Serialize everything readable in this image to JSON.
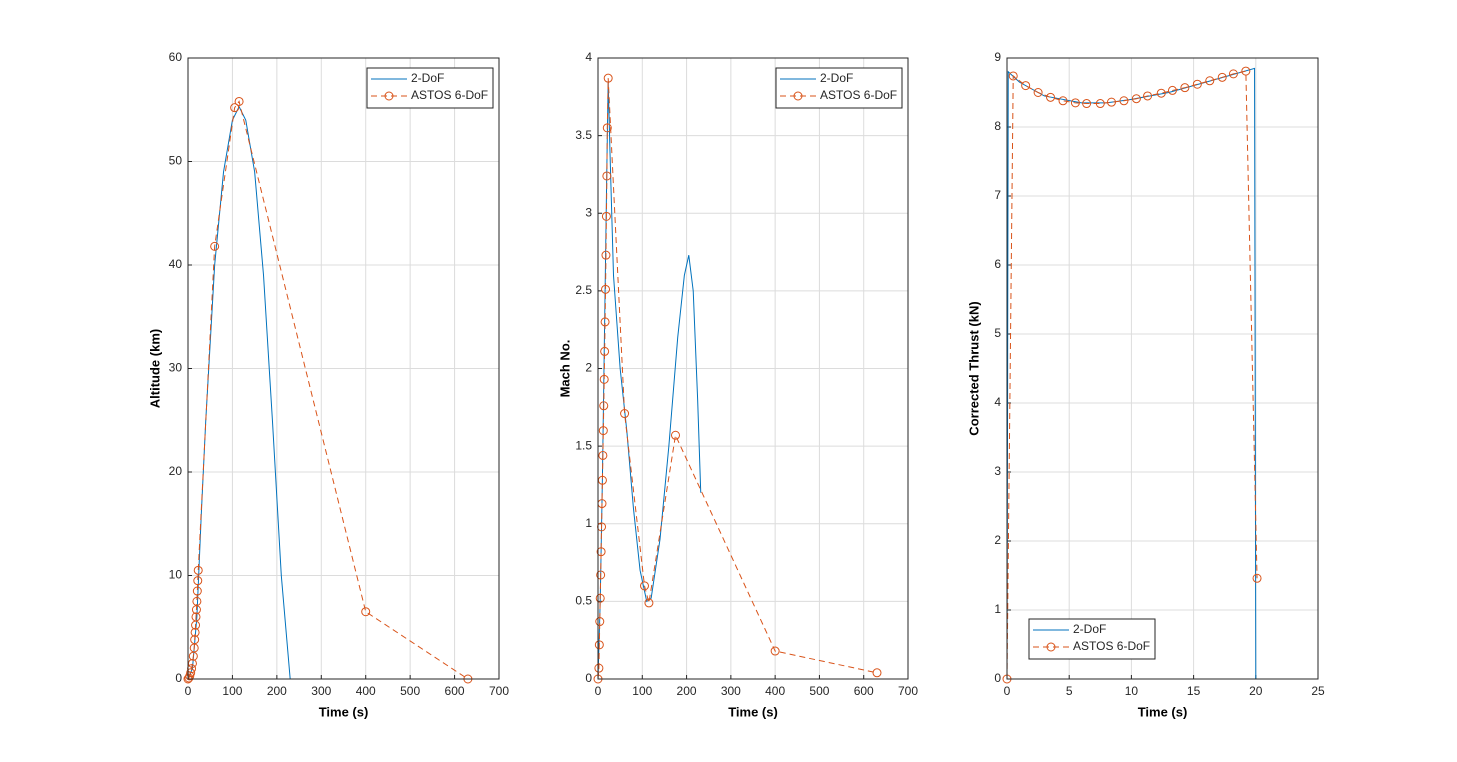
{
  "chart_data": [
    {
      "type": "line",
      "xlabel": "Time (s)",
      "ylabel": "Altitude (km)",
      "xlim": [
        0,
        700
      ],
      "xticks": [
        0,
        100,
        200,
        300,
        400,
        500,
        600,
        700
      ],
      "ylim": [
        0,
        60
      ],
      "yticks": [
        0,
        10,
        20,
        30,
        40,
        50,
        60
      ],
      "grid": true,
      "legend": "northeast",
      "series": [
        {
          "name": "2-DoF",
          "color": "#0072BD",
          "line_style": "solid",
          "x": [
            0,
            10,
            20,
            30,
            40,
            60,
            80,
            100,
            115,
            130,
            150,
            170,
            190,
            210,
            230
          ],
          "values": [
            0,
            1,
            6,
            16,
            25,
            40,
            49,
            54,
            55.3,
            54,
            49,
            39,
            25,
            10,
            0
          ]
        },
        {
          "name": "ASTOS 6-DoF",
          "color": "#D95319",
          "line_style": "dashed",
          "marker": "circle",
          "x": [
            0,
            2,
            4,
            6,
            8,
            10,
            12,
            14,
            15,
            16,
            17,
            18,
            19,
            20,
            21,
            22,
            23,
            60,
            105,
            115,
            400,
            630
          ],
          "values": [
            0,
            0.1,
            0.3,
            0.6,
            1,
            1.5,
            2.2,
            3,
            3.8,
            4.5,
            5.2,
            6,
            6.7,
            7.5,
            8.5,
            9.5,
            10.5,
            41.8,
            55.2,
            55.8,
            6.5,
            0
          ]
        }
      ]
    },
    {
      "type": "line",
      "xlabel": "Time (s)",
      "ylabel": "Mach No.",
      "xlim": [
        0,
        700
      ],
      "xticks": [
        0,
        100,
        200,
        300,
        400,
        500,
        600,
        700
      ],
      "ylim": [
        0,
        4
      ],
      "yticks": [
        0,
        0.5,
        1,
        1.5,
        2,
        2.5,
        3,
        3.5,
        4
      ],
      "grid": true,
      "legend": "northeast",
      "series": [
        {
          "name": "2-DoF",
          "color": "#0072BD",
          "line_style": "solid",
          "x": [
            0,
            5,
            10,
            15,
            20,
            23,
            27,
            35,
            50,
            65,
            80,
            95,
            110,
            120,
            140,
            160,
            180,
            195,
            205,
            215,
            225,
            232
          ],
          "values": [
            0,
            0.5,
            1.3,
            2.3,
            3.3,
            3.85,
            3.4,
            2.6,
            2.0,
            1.6,
            1.1,
            0.7,
            0.5,
            0.52,
            0.9,
            1.5,
            2.2,
            2.6,
            2.73,
            2.5,
            1.8,
            1.2
          ]
        },
        {
          "name": "ASTOS 6-DoF",
          "color": "#D95319",
          "line_style": "dashed",
          "marker": "circle",
          "x": [
            0,
            2,
            3,
            4,
            5,
            6,
            7,
            8,
            9,
            10,
            11,
            12,
            13,
            14,
            15,
            16,
            17,
            18,
            19,
            20,
            21,
            23,
            60,
            105,
            115,
            175,
            400,
            630
          ],
          "values": [
            0,
            0.07,
            0.22,
            0.37,
            0.52,
            0.67,
            0.82,
            0.98,
            1.13,
            1.28,
            1.44,
            1.6,
            1.76,
            1.93,
            2.11,
            2.3,
            2.51,
            2.73,
            2.98,
            3.24,
            3.55,
            3.87,
            1.71,
            0.6,
            0.49,
            1.57,
            0.18,
            0.04
          ]
        }
      ]
    },
    {
      "type": "line",
      "xlabel": "Time (s)",
      "ylabel": "Corrected Thrust (kN)",
      "xlim": [
        0,
        25
      ],
      "xticks": [
        0,
        5,
        10,
        15,
        20,
        25
      ],
      "ylim": [
        0,
        9
      ],
      "yticks": [
        0,
        1,
        2,
        3,
        4,
        5,
        6,
        7,
        8,
        9
      ],
      "grid": true,
      "legend": "southwest",
      "series": [
        {
          "name": "2-DoF",
          "color": "#0072BD",
          "line_style": "solid",
          "x": [
            0,
            0.1,
            1,
            3,
            6,
            8,
            10,
            13,
            16,
            19.9,
            20,
            25
          ],
          "values": [
            0,
            8.8,
            8.65,
            8.45,
            8.35,
            8.35,
            8.4,
            8.5,
            8.65,
            8.85,
            0,
            0
          ]
        },
        {
          "name": "ASTOS 6-DoF",
          "color": "#D95319",
          "line_style": "dashed",
          "marker": "circle",
          "x": [
            0,
            0.5,
            1.5,
            2.5,
            3.5,
            4.5,
            5.5,
            6.4,
            7.5,
            8.4,
            9.4,
            10.4,
            11.3,
            12.4,
            13.3,
            14.3,
            15.3,
            16.3,
            17.3,
            18.2,
            19.2,
            20.1
          ],
          "values": [
            0,
            8.74,
            8.6,
            8.5,
            8.43,
            8.38,
            8.35,
            8.34,
            8.34,
            8.36,
            8.38,
            8.41,
            8.45,
            8.49,
            8.53,
            8.57,
            8.62,
            8.67,
            8.72,
            8.77,
            8.81,
            1.46
          ]
        }
      ]
    }
  ]
}
